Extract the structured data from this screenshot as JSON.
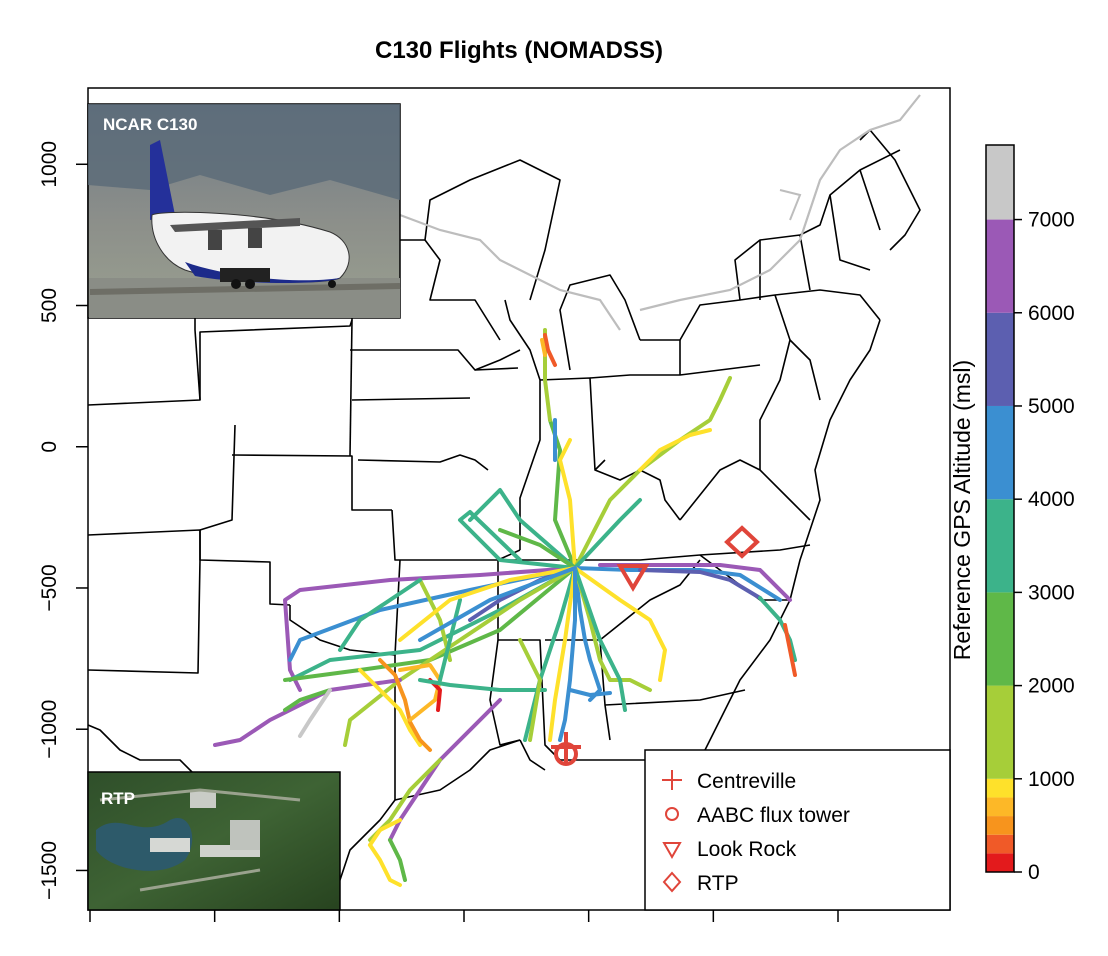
{
  "title": "C130 Flights (NOMADSS)",
  "y_axis": {
    "ticks": [
      1000,
      500,
      0,
      -500,
      -1000,
      -1500
    ],
    "tick_labels": [
      "1000",
      "500",
      "0",
      "−500",
      "−1000",
      "−1500"
    ],
    "range": [
      -1640,
      1270
    ]
  },
  "x_axis": {
    "tick_count": 7,
    "tick_labels_shown": false
  },
  "insets": [
    {
      "label": "NCAR C130",
      "depicts": "aircraft-photo"
    },
    {
      "label": "RTP",
      "depicts": "aerial-photo"
    }
  ],
  "legend": {
    "items": [
      {
        "label": "Centreville",
        "symbol": "plus",
        "color": "#e0453a"
      },
      {
        "label": "AABC flux tower",
        "symbol": "circle",
        "color": "#e0453a"
      },
      {
        "label": "Look Rock",
        "symbol": "triangle-down",
        "color": "#e0453a"
      },
      {
        "label": "RTP",
        "symbol": "diamond",
        "color": "#e0453a"
      }
    ]
  },
  "colorbar": {
    "title": "Reference GPS Altitude (msl)",
    "min": 0,
    "max": 7800,
    "labels": [
      0,
      1000,
      2000,
      3000,
      4000,
      5000,
      6000,
      7000
    ],
    "bands": [
      {
        "from": 0,
        "to": 200,
        "color": "#e31a1c"
      },
      {
        "from": 200,
        "to": 400,
        "color": "#f05a28"
      },
      {
        "from": 400,
        "to": 600,
        "color": "#f7941d"
      },
      {
        "from": 600,
        "to": 800,
        "color": "#fdb827"
      },
      {
        "from": 800,
        "to": 1000,
        "color": "#fee12b"
      },
      {
        "from": 1000,
        "to": 2000,
        "color": "#a6ce39"
      },
      {
        "from": 2000,
        "to": 3000,
        "color": "#5fb848"
      },
      {
        "from": 3000,
        "to": 4000,
        "color": "#3cb38a"
      },
      {
        "from": 4000,
        "to": 5000,
        "color": "#3b8fd1"
      },
      {
        "from": 5000,
        "to": 6000,
        "color": "#5c5fb0"
      },
      {
        "from": 6000,
        "to": 7000,
        "color": "#9b59b6"
      },
      {
        "from": 7000,
        "to": 7800,
        "color": "#c8c8c8"
      }
    ]
  },
  "sites": [
    {
      "name": "Centreville",
      "symbol": "plus",
      "y": -740,
      "color": "#e0453a"
    },
    {
      "name": "AABC flux tower",
      "symbol": "circle",
      "y": -760,
      "color": "#e0453a"
    },
    {
      "name": "Look Rock",
      "symbol": "triangle-down",
      "y": -390,
      "color": "#e0453a"
    },
    {
      "name": "RTP",
      "symbol": "diamond",
      "y": -290,
      "color": "#e0453a"
    }
  ]
}
